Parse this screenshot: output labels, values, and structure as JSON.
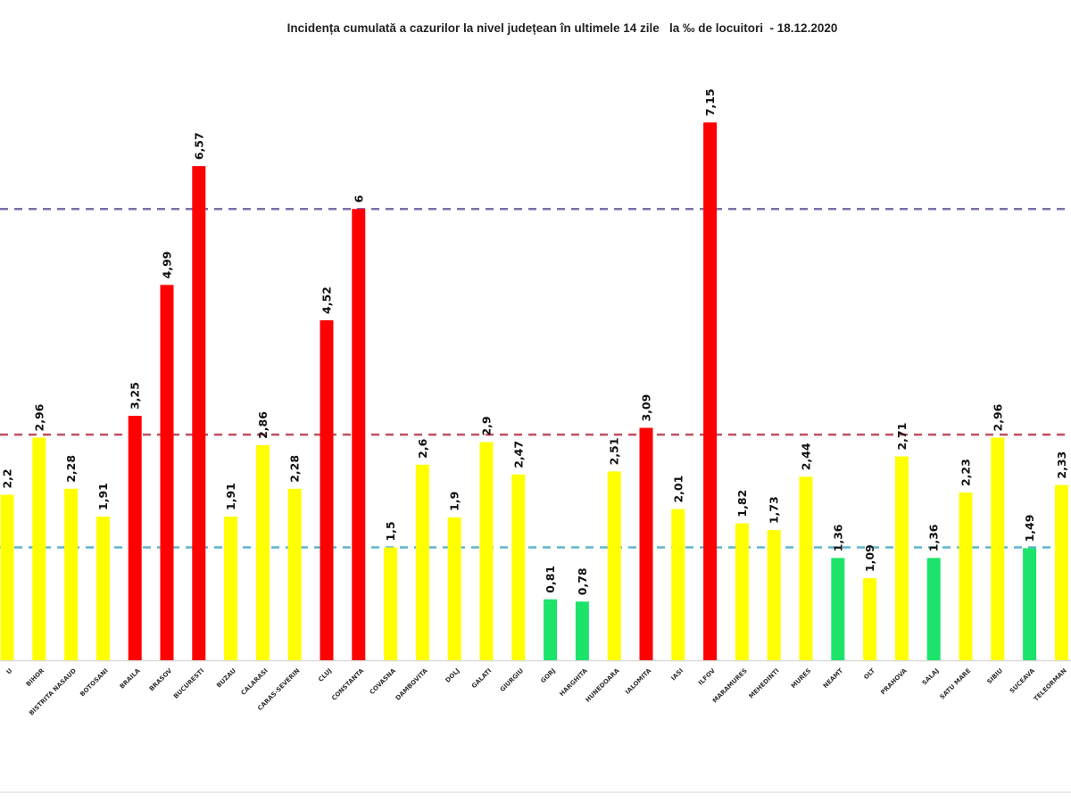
{
  "chart_data": {
    "type": "bar",
    "title": "Incidența cumulată a cazurilor la nivel județean în ultimele 14 zile   la ‰ de locuitori  - 18.12.2020",
    "xlabel": "",
    "ylabel": "",
    "ylim": [
      0,
      8.75
    ],
    "grid": false,
    "legend": "none",
    "categories": [
      "U",
      "BIHOR",
      "BISTRITA NASAUD",
      "BOTOSANI",
      "BRAILA",
      "BRASOV",
      "BUCURESTI",
      "BUZAU",
      "CALARASI",
      "CARAS-SEVERIN",
      "CLUJ",
      "CONSTANTA",
      "COVASNA",
      "DAMBOVITA",
      "DOLJ",
      "GALATI",
      "GIURGIU",
      "GORJ",
      "HARGHITA",
      "HUNEDOARA",
      "IALOMITA",
      "IASI",
      "ILFOV",
      "MARAMURES",
      "MEHEDINTI",
      "MURES",
      "NEAMT",
      "OLT",
      "PRAHOVA",
      "SALAJ",
      "SATU MARE",
      "SIBIU",
      "SUCEAVA",
      "TELEORMAN"
    ],
    "series": [
      {
        "name": "Incidenta",
        "values": [
          2.2,
          2.96,
          2.28,
          1.91,
          3.25,
          4.99,
          6.57,
          1.91,
          2.86,
          2.28,
          4.52,
          6,
          1.5,
          2.6,
          1.9,
          2.9,
          2.47,
          0.81,
          0.78,
          2.51,
          3.09,
          2.01,
          7.15,
          1.82,
          1.73,
          2.44,
          1.36,
          1.09,
          2.71,
          1.36,
          2.23,
          2.96,
          1.49,
          2.33
        ],
        "labels": [
          "2,2",
          "2,96",
          "2,28",
          "1,91",
          "3,25",
          "4,99",
          "6,57",
          "1,91",
          "2,86",
          "2,28",
          "4,52",
          "6",
          "1,5",
          "2,6",
          "1,9",
          "2,9",
          "2,47",
          "0,81",
          "0,78",
          "2,51",
          "3,09",
          "2,01",
          "7,15",
          "1,82",
          "1,73",
          "2,44",
          "1,36",
          "1,09",
          "2,71",
          "1,36",
          "2,23",
          "2,96",
          "1,49",
          "2,33"
        ],
        "levels": [
          "yellow",
          "yellow",
          "yellow",
          "yellow",
          "red",
          "red",
          "red",
          "yellow",
          "yellow",
          "yellow",
          "red",
          "red",
          "yellow",
          "yellow",
          "yellow",
          "yellow",
          "yellow",
          "green",
          "green",
          "yellow",
          "red",
          "yellow",
          "red",
          "yellow",
          "yellow",
          "yellow",
          "green",
          "yellow",
          "yellow",
          "green",
          "yellow",
          "yellow",
          "green",
          "yellow"
        ]
      }
    ],
    "reference_lines": [
      {
        "name": "threshold-1.5",
        "value": 1.5,
        "color": "#5fb6cc"
      },
      {
        "name": "threshold-3",
        "value": 3,
        "color": "#c0505f"
      },
      {
        "name": "threshold-6",
        "value": 6,
        "color": "#7f6fa8"
      }
    ],
    "colors": {
      "green": "#1ee36a",
      "yellow": "#ffff00",
      "red": "#ff0000"
    }
  }
}
